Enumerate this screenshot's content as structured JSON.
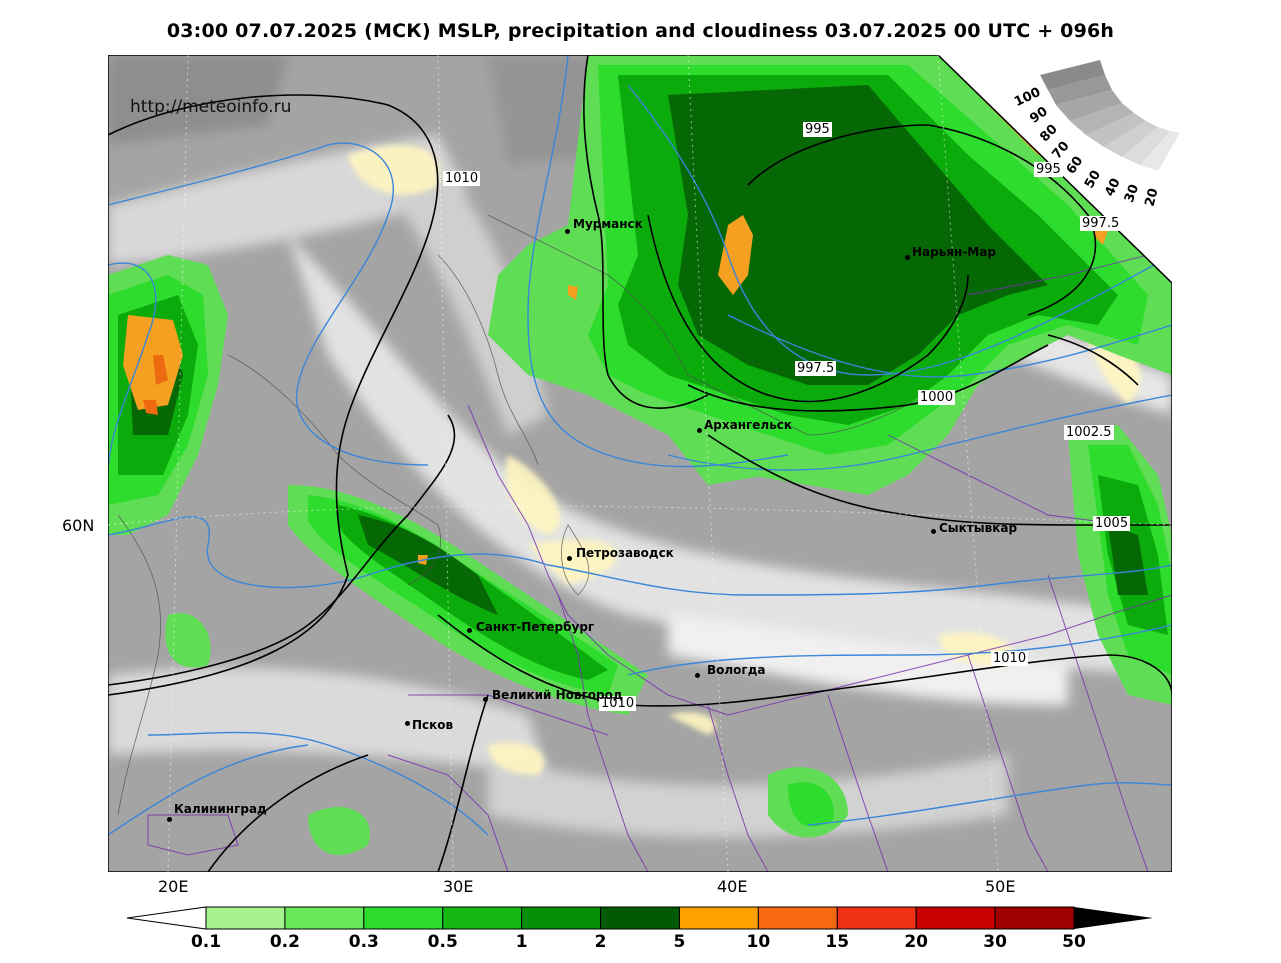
{
  "title": "03:00 07.07.2025 (МСК) MSLP, precipitation and cloudiness 03.07.2025 00 UTC + 096h",
  "source_url": "http://meteoinfo.ru",
  "longitude_labels": [
    "20E",
    "30E",
    "40E",
    "50E"
  ],
  "latitude_labels": [
    "60N"
  ],
  "cities": [
    {
      "name": "Мурманск"
    },
    {
      "name": "Нарьян-Мар"
    },
    {
      "name": "Архангельск"
    },
    {
      "name": "Сыктывкар"
    },
    {
      "name": "Петрозаводск"
    },
    {
      "name": "Санкт-Петербург"
    },
    {
      "name": "Вологда"
    },
    {
      "name": "Великий Новгород"
    },
    {
      "name": "Псков"
    },
    {
      "name": "Калининград"
    }
  ],
  "isobar_labels": [
    "1010",
    "995",
    "997.5",
    "1000",
    "1002.5",
    "1005",
    "1010",
    "1010",
    "995",
    "997.5"
  ],
  "cloudiness_scale": {
    "labels": [
      "100",
      "90",
      "80",
      "70",
      "60",
      "50",
      "40",
      "30",
      "20"
    ]
  },
  "precip_legend": {
    "labels": [
      "0.1",
      "0.2",
      "0.3",
      "0.5",
      "1",
      "2",
      "5",
      "10",
      "15",
      "20",
      "30",
      "50"
    ],
    "colors": [
      "#a6f28f",
      "#66e85a",
      "#2ddc2d",
      "#13b813",
      "#078e07",
      "#045a04",
      "#ffa000",
      "#f76a10",
      "#f03214",
      "#c80000",
      "#a00000"
    ]
  },
  "map_colors": {
    "land_cloud_grey": "#a9a9a9",
    "clear_light": "#e8e8e8",
    "yellow_clear": "#fff8c8",
    "isobar": "#000000",
    "isotherm": "#3a86d8",
    "border": "#7a2fb0"
  }
}
